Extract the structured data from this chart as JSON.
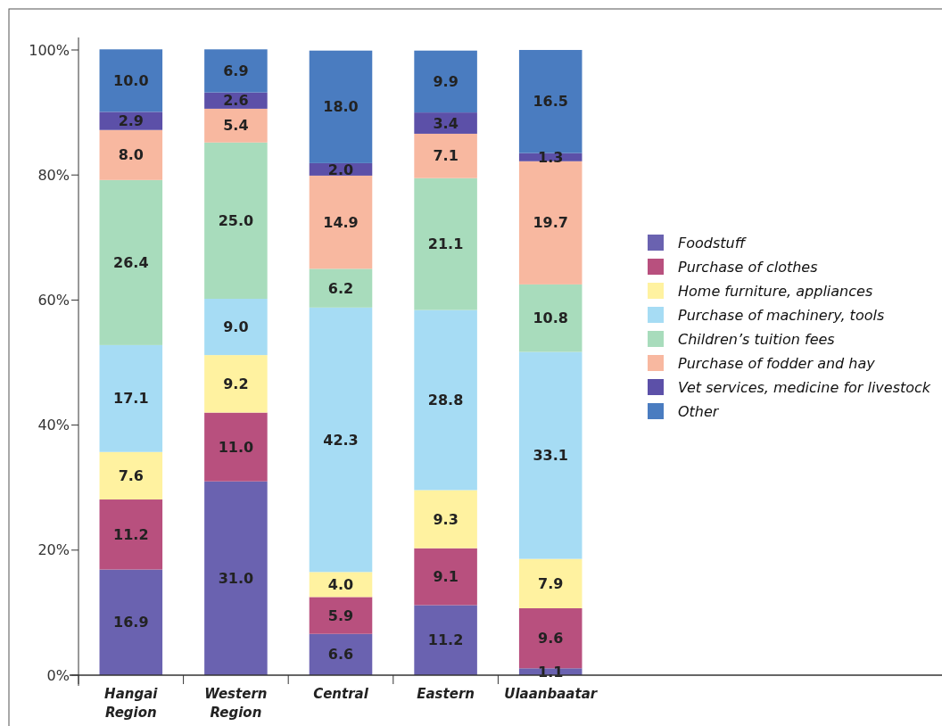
{
  "chart_data": {
    "type": "bar",
    "stacked": true,
    "categories": [
      "Hangai Region",
      "Western Region",
      "Central",
      "Eastern",
      "Ulaanbaatar"
    ],
    "ylim": [
      0,
      102
    ],
    "yticks": [
      {
        "value": 0,
        "label": "0%"
      },
      {
        "value": 20,
        "label": "20%"
      },
      {
        "value": 40,
        "label": "40%"
      },
      {
        "value": 60,
        "label": "60%"
      },
      {
        "value": 80,
        "label": "80%"
      },
      {
        "value": 100,
        "label": "100%"
      }
    ],
    "legend": "right",
    "grid": false,
    "series": [
      {
        "name": "Foodstuff",
        "color": "#6a62b0",
        "values": [
          16.9,
          31.0,
          6.6,
          11.2,
          1.1
        ],
        "value_labels": [
          "16.9",
          "31.0",
          "6.6",
          "11.2",
          "1.1"
        ]
      },
      {
        "name": "Purchase of clothes",
        "color": "#b8507e",
        "values": [
          11.2,
          11.0,
          5.9,
          9.1,
          9.6
        ],
        "value_labels": [
          "11.2",
          "11.0",
          "5.9",
          "9.1",
          "9.6"
        ]
      },
      {
        "name": "Home furniture, appliances",
        "color": "#fff2a0",
        "values": [
          7.6,
          9.2,
          4.0,
          9.3,
          7.9
        ],
        "value_labels": [
          "7.6",
          "9.2",
          "4.0",
          "9.3",
          "7.9"
        ]
      },
      {
        "name": "Purchase of machinery, tools",
        "color": "#a6dcf4",
        "values": [
          17.1,
          9.0,
          42.3,
          28.8,
          33.1
        ],
        "value_labels": [
          "17.1",
          "9.0",
          "42.3",
          "28.8",
          "33.1"
        ]
      },
      {
        "name": "Children’s tuition fees",
        "color": "#a8dcbc",
        "values": [
          26.4,
          25.0,
          6.2,
          21.1,
          10.8
        ],
        "value_labels": [
          "26.4",
          "25.0",
          "6.2",
          "21.1",
          "10.8"
        ]
      },
      {
        "name": "Purchase of fodder and hay",
        "color": "#f8b8a0",
        "values": [
          8.0,
          5.4,
          14.9,
          7.1,
          19.7
        ],
        "value_labels": [
          "8.0",
          "5.4",
          "14.9",
          "7.1",
          "19.7"
        ]
      },
      {
        "name": "Vet services, medicine for livestock",
        "color": "#5c50a8",
        "values": [
          2.9,
          2.6,
          2.0,
          3.4,
          1.3
        ],
        "value_labels": [
          "2.9",
          "2.6",
          "2.0",
          "3.4",
          "1.3"
        ]
      },
      {
        "name": "Other",
        "color": "#4a7cc0",
        "values": [
          10.0,
          6.9,
          18.0,
          9.9,
          16.5
        ],
        "value_labels": [
          "10.0",
          "6.9",
          "18.0",
          "9.9",
          "16.5"
        ]
      }
    ]
  }
}
